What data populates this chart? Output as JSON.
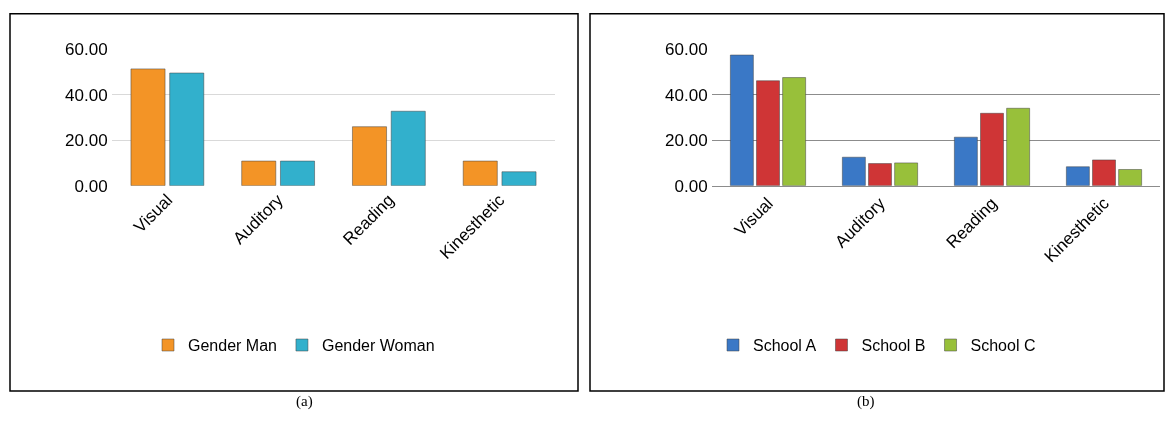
{
  "chart_data": [
    {
      "type": "bar",
      "categories": [
        "Visual",
        "Auditory",
        "Reading",
        "Kinesthetic"
      ],
      "series": [
        {
          "name": "Gender Man",
          "color": "#f39426",
          "values": [
            51.3,
            10.8,
            25.9,
            10.8
          ]
        },
        {
          "name": "Gender Woman",
          "color": "#32b0cc",
          "values": [
            49.5,
            10.8,
            32.7,
            6.1
          ]
        }
      ],
      "ylim": [
        0,
        60
      ],
      "yticks": [
        {
          "value": 0,
          "label": "0.00"
        },
        {
          "value": 20,
          "label": "20.00"
        },
        {
          "value": 40,
          "label": "40.00"
        },
        {
          "value": 60,
          "label": "60.00"
        }
      ],
      "grid": "y",
      "legend": "bottom",
      "annotations": [
        "(a)"
      ]
    },
    {
      "type": "bar",
      "categories": [
        "Visual",
        "Auditory",
        "Reading",
        "Kinesthetic"
      ],
      "series": [
        {
          "name": "School A",
          "color": "#3a78c6",
          "values": [
            57.4,
            12.5,
            21.3,
            8.3
          ]
        },
        {
          "name": "School B",
          "color": "#cf3536",
          "values": [
            46.1,
            9.7,
            31.8,
            11.3
          ]
        },
        {
          "name": "School C",
          "color": "#98c03a",
          "values": [
            47.5,
            10.0,
            34.0,
            7.1
          ]
        }
      ],
      "ylim": [
        0,
        60
      ],
      "yticks": [
        {
          "value": 0,
          "label": "0.00"
        },
        {
          "value": 20,
          "label": "20.00"
        },
        {
          "value": 40,
          "label": "40.00"
        },
        {
          "value": 60,
          "label": "60.00"
        }
      ],
      "grid": "y",
      "legend": "bottom",
      "annotations": [
        "(b)"
      ]
    }
  ]
}
